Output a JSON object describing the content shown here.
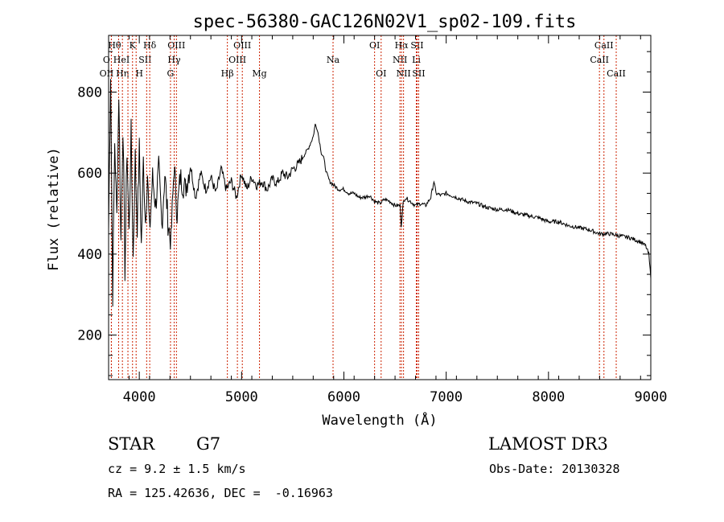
{
  "chart_data": {
    "type": "line",
    "title": "spec-56380-GAC126N02V1_sp02-109.fits",
    "xlabel": "Wavelength (Å)",
    "ylabel": "Flux (relative)",
    "xlim": [
      3700,
      9000
    ],
    "ylim": [
      90,
      940
    ],
    "xticks": [
      4000,
      5000,
      6000,
      7000,
      8000,
      9000
    ],
    "yticks": [
      200,
      400,
      600,
      800
    ],
    "series": [
      {
        "name": "spectrum",
        "x": [
          3700,
          3720,
          3740,
          3760,
          3780,
          3800,
          3820,
          3840,
          3860,
          3880,
          3900,
          3920,
          3940,
          3960,
          3980,
          4000,
          4020,
          4040,
          4060,
          4080,
          4100,
          4130,
          4160,
          4190,
          4220,
          4250,
          4280,
          4310,
          4340,
          4370,
          4400,
          4450,
          4500,
          4550,
          4600,
          4650,
          4700,
          4750,
          4800,
          4850,
          4900,
          4950,
          5000,
          5050,
          5100,
          5150,
          5200,
          5250,
          5300,
          5350,
          5400,
          5450,
          5500,
          5550,
          5600,
          5650,
          5700,
          5720,
          5740,
          5760,
          5780,
          5800,
          5830,
          5860,
          5900,
          5950,
          6000,
          6050,
          6100,
          6150,
          6200,
          6250,
          6300,
          6350,
          6400,
          6450,
          6500,
          6550,
          6560,
          6580,
          6600,
          6650,
          6700,
          6750,
          6800,
          6850,
          6880,
          6900,
          6950,
          7000,
          7100,
          7200,
          7300,
          7400,
          7500,
          7600,
          7700,
          7800,
          7900,
          8000,
          8100,
          8200,
          8300,
          8400,
          8500,
          8600,
          8700,
          8800,
          8900,
          8950,
          8980,
          9000
        ],
        "values": [
          460,
          850,
          300,
          680,
          490,
          800,
          430,
          720,
          360,
          660,
          450,
          700,
          390,
          640,
          470,
          660,
          420,
          630,
          480,
          600,
          450,
          590,
          520,
          610,
          470,
          600,
          480,
          430,
          620,
          500,
          590,
          560,
          620,
          540,
          600,
          560,
          590,
          550,
          610,
          560,
          580,
          540,
          600,
          560,
          590,
          570,
          580,
          560,
          585,
          575,
          600,
          590,
          610,
          620,
          640,
          660,
          690,
          720,
          710,
          680,
          650,
          640,
          600,
          580,
          570,
          560,
          560,
          550,
          550,
          540,
          540,
          545,
          530,
          525,
          535,
          530,
          520,
          520,
          470,
          525,
          540,
          530,
          520,
          525,
          520,
          540,
          580,
          550,
          545,
          550,
          540,
          530,
          525,
          515,
          510,
          510,
          500,
          495,
          490,
          480,
          480,
          470,
          465,
          460,
          450,
          450,
          445,
          440,
          430,
          420,
          400,
          340
        ]
      }
    ],
    "lines": [
      {
        "name": "OII",
        "wavelength": 3727,
        "label": "OII",
        "row": 2,
        "dx": -6
      },
      {
        "name": "H-theta",
        "wavelength": 3798,
        "label": "Hθ",
        "row": 0,
        "dx": -5
      },
      {
        "name": "OII-b",
        "wavelength": 3727,
        "label": "O",
        "row": 1,
        "dx": -6
      },
      {
        "name": "H-eta",
        "wavelength": 3835,
        "label": "Hη",
        "row": 2,
        "dx": 0
      },
      {
        "name": "HeI",
        "wavelength": 3889,
        "label": "HeI",
        "row": 1,
        "dx": -8
      },
      {
        "name": "K",
        "wavelength": 3934,
        "label": "K",
        "row": 0,
        "dx": 0
      },
      {
        "name": "SII",
        "wavelength": 4072,
        "label": "SII",
        "row": 1,
        "dx": -2
      },
      {
        "name": "H",
        "wavelength": 3969,
        "label": "H",
        "row": 2,
        "dx": 4
      },
      {
        "name": "H-delta",
        "wavelength": 4102,
        "label": "Hδ",
        "row": 0,
        "dx": 0
      },
      {
        "name": "OIII-4363",
        "wavelength": 4363,
        "label": "OIII",
        "row": 0,
        "dx": 0
      },
      {
        "name": "H-gamma",
        "wavelength": 4341,
        "label": "Hγ",
        "row": 1,
        "dx": 0
      },
      {
        "name": "G",
        "wavelength": 4305,
        "label": "G",
        "row": 2,
        "dx": 0
      },
      {
        "name": "H-beta",
        "wavelength": 4861,
        "label": "Hβ",
        "row": 2,
        "dx": 0
      },
      {
        "name": "OIII-5007",
        "wavelength": 5007,
        "label": "OIII",
        "row": 0,
        "dx": 0
      },
      {
        "name": "OIII-4959",
        "wavelength": 4959,
        "label": "OIII",
        "row": 1,
        "dx": 0
      },
      {
        "name": "Mg",
        "wavelength": 5175,
        "label": "Mg",
        "row": 2,
        "dx": 0
      },
      {
        "name": "Na",
        "wavelength": 5894,
        "label": "Na",
        "row": 1,
        "dx": 0
      },
      {
        "name": "OI-6300",
        "wavelength": 6300,
        "label": "OI",
        "row": 0,
        "dx": 0
      },
      {
        "name": "OI-6364",
        "wavelength": 6364,
        "label": "OI",
        "row": 2,
        "dx": 0
      },
      {
        "name": "NII-6548",
        "wavelength": 6548,
        "label": "NII",
        "row": 1,
        "dx": 0
      },
      {
        "name": "H-alpha",
        "wavelength": 6563,
        "label": "Hα",
        "row": 0,
        "dx": 0
      },
      {
        "name": "NII-6583",
        "wavelength": 6583,
        "label": "NII",
        "row": 2,
        "dx": 0
      },
      {
        "name": "SII-6716",
        "wavelength": 6716,
        "label": "SII",
        "row": 0,
        "dx": 0
      },
      {
        "name": "Li",
        "wavelength": 6708,
        "label": "Li",
        "row": 1,
        "dx": 0
      },
      {
        "name": "SII-6731",
        "wavelength": 6731,
        "label": "SII",
        "row": 2,
        "dx": 0
      },
      {
        "name": "CaII-8542",
        "wavelength": 8542,
        "label": "CaII",
        "row": 0,
        "dx": 0
      },
      {
        "name": "CaII-8498",
        "wavelength": 8498,
        "label": "CaII",
        "row": 1,
        "dx": 0
      },
      {
        "name": "CaII-8662",
        "wavelength": 8662,
        "label": "CaII",
        "row": 2,
        "dx": 0
      }
    ],
    "colors": {
      "spectrum": "#000000",
      "lines": "#cc2200"
    }
  },
  "info": {
    "class": "STAR",
    "subclass": "G7",
    "survey": "LAMOST DR3",
    "cz": "cz = 9.2 ± 1.5 km/s",
    "obsdate": "Obs-Date: 20130328",
    "radec": "RA = 125.42636, DEC =  -0.16963"
  }
}
